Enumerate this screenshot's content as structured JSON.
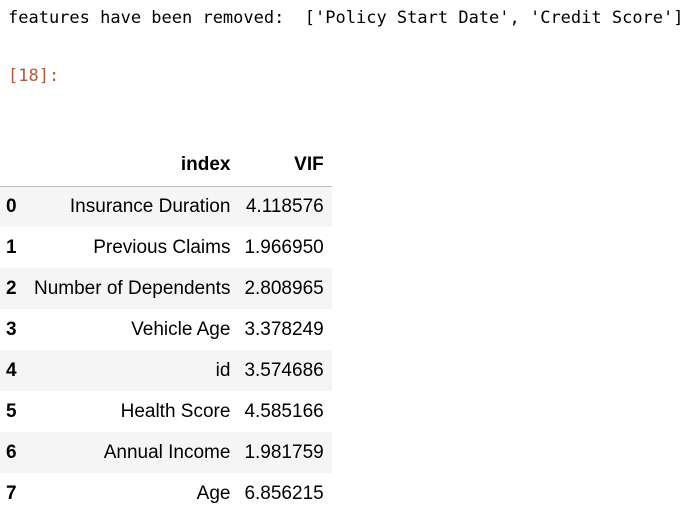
{
  "output": {
    "stdout_text": "features have been removed:  ['Policy Start Date', 'Credit Score']",
    "prompt_label": "[18]:"
  },
  "table": {
    "headers": [
      "index",
      "VIF"
    ],
    "rows": [
      {
        "row_index": "0",
        "index": "Insurance Duration",
        "vif": "4.118576"
      },
      {
        "row_index": "1",
        "index": "Previous Claims",
        "vif": "1.966950"
      },
      {
        "row_index": "2",
        "index": "Number of Dependents",
        "vif": "2.808965"
      },
      {
        "row_index": "3",
        "index": "Vehicle Age",
        "vif": "3.378249"
      },
      {
        "row_index": "4",
        "index": "id",
        "vif": "3.574686"
      },
      {
        "row_index": "5",
        "index": "Health Score",
        "vif": "4.585166"
      },
      {
        "row_index": "6",
        "index": "Annual Income",
        "vif": "1.981759"
      },
      {
        "row_index": "7",
        "index": "Age",
        "vif": "6.856215"
      }
    ]
  },
  "colors": {
    "prompt": "#b05a3a",
    "row_stripe": "#f5f5f5",
    "header_rule": "#bdbdbd"
  }
}
